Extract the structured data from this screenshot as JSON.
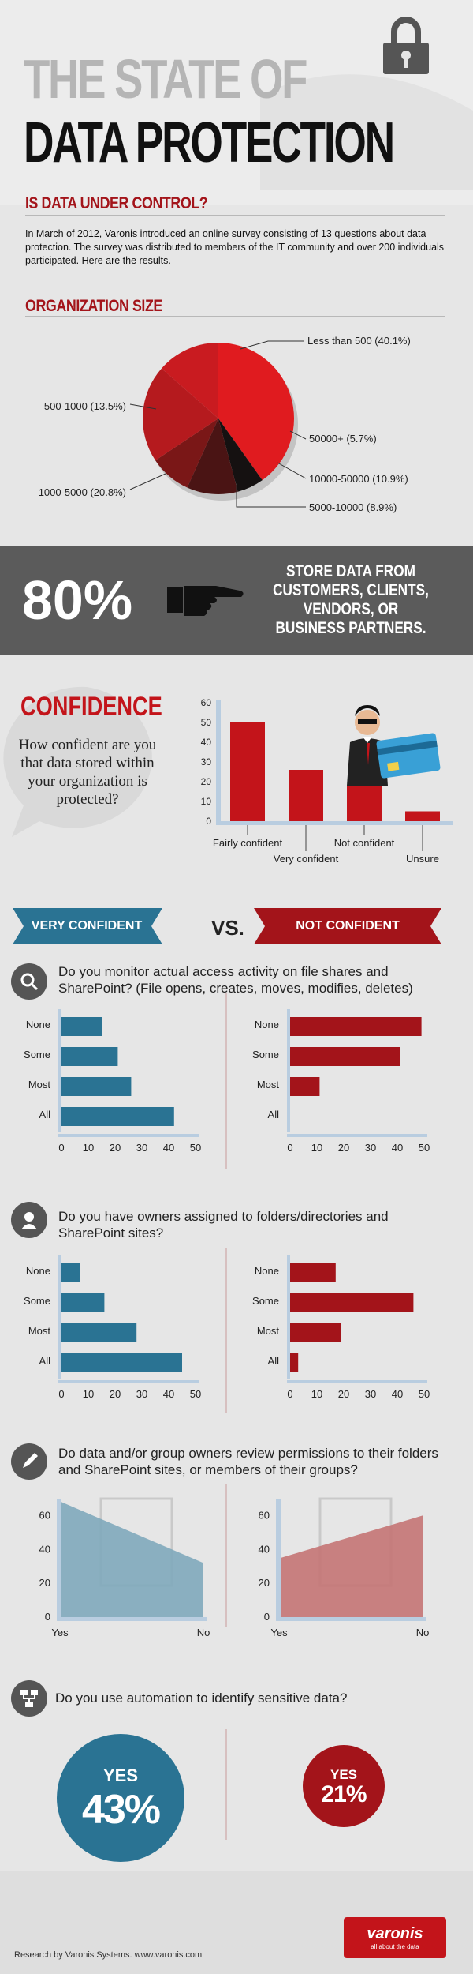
{
  "header": {
    "title_line1": "THE STATE OF",
    "title_line2": "DATA PROTECTION",
    "lock_icon": "padlock-icon"
  },
  "intro_section": {
    "heading": "IS DATA UNDER CONTROL?",
    "text": "In March of 2012, Varonis introduced an online survey consisting of 13 questions about data protection. The survey was distributed to members of the IT community and over 200 individuals participated.  Here are the results."
  },
  "org_size": {
    "heading": "ORGANIZATION SIZE"
  },
  "banner": {
    "percent": "80%",
    "text": "STORE DATA FROM CUSTOMERS, CLIENTS, VENDORS, OR BUSINESS PARTNERS.",
    "hand_icon": "pointing-hand-icon"
  },
  "confidence": {
    "heading": "CONFIDENCE",
    "question": "How confident are you that data stored within your organization is protected?"
  },
  "versus": {
    "left_label": "VERY CONFIDENT",
    "vs": "VS.",
    "right_label": "NOT CONFIDENT"
  },
  "questions": {
    "q1": "Do you monitor actual access activity on file shares and SharePoint? (File opens, creates, moves, modifies, deletes)",
    "q2": "Do you have owners assigned to folders/directories and SharePoint sites?",
    "q3": "Do data and/or group owners review permissions to their folders and SharePoint sites, or members of their groups?",
    "q4": "Do you use automation to identify sensitive data?"
  },
  "automation": {
    "left_yes": "YES",
    "left_pct": "43%",
    "right_yes": "YES",
    "right_pct": "21%"
  },
  "footer": {
    "text": "Research by Varonis Systems. www.varonis.com",
    "logo": "varonis",
    "tagline": "all about the data"
  },
  "colors": {
    "red": "#c3141a",
    "dark_red": "#a3141a",
    "blue": "#2a7393",
    "light_blue": "#7fa8bb",
    "light_red": "#c47474"
  },
  "chart_data": [
    {
      "id": "org-size-pie",
      "type": "pie",
      "labels": [
        "Less than 500 (40.1%)",
        "50000+ (5.7%)",
        "10000-50000 (10.9%)",
        "5000-10000 (8.9%)",
        "1000-5000 (20.8%)",
        "500-1000 (13.5%)"
      ],
      "values": [
        40.1,
        5.7,
        10.9,
        8.9,
        20.8,
        13.5
      ],
      "colors": [
        "#e01b1f",
        "#151111",
        "#4a1414",
        "#7a1717",
        "#b51a1e",
        "#c91b20"
      ]
    },
    {
      "id": "confidence-bar",
      "type": "bar",
      "categories": [
        "Fairly confident",
        "Very confident",
        "Not confident",
        "Unsure"
      ],
      "values": [
        50,
        26,
        18,
        5
      ],
      "ylim": [
        0,
        60
      ],
      "yticks": [
        0,
        10,
        20,
        30,
        40,
        50,
        60
      ]
    },
    {
      "id": "monitor-very",
      "type": "bar",
      "orientation": "horizontal",
      "categories": [
        "None",
        "Some",
        "Most",
        "All"
      ],
      "values": [
        15,
        21,
        26,
        42
      ],
      "xlim": [
        0,
        50
      ],
      "xticks": [
        0,
        10,
        20,
        30,
        40,
        50
      ]
    },
    {
      "id": "monitor-not",
      "type": "bar",
      "orientation": "horizontal",
      "categories": [
        "None",
        "Some",
        "Most",
        "All"
      ],
      "values": [
        49,
        41,
        11,
        0
      ],
      "xlim": [
        0,
        50
      ],
      "xticks": [
        0,
        10,
        20,
        30,
        40,
        50
      ]
    },
    {
      "id": "owners-very",
      "type": "bar",
      "orientation": "horizontal",
      "categories": [
        "None",
        "Some",
        "Most",
        "All"
      ],
      "values": [
        7,
        16,
        28,
        45
      ],
      "xlim": [
        0,
        50
      ],
      "xticks": [
        0,
        10,
        20,
        30,
        40,
        50
      ]
    },
    {
      "id": "owners-not",
      "type": "bar",
      "orientation": "horizontal",
      "categories": [
        "None",
        "Some",
        "Most",
        "All"
      ],
      "values": [
        17,
        46,
        19,
        3
      ],
      "xlim": [
        0,
        50
      ],
      "xticks": [
        0,
        10,
        20,
        30,
        40,
        50
      ]
    },
    {
      "id": "review-very",
      "type": "area",
      "categories": [
        "Yes",
        "No"
      ],
      "values": [
        68,
        32
      ],
      "ylim": [
        0,
        70
      ],
      "yticks": [
        0,
        20,
        40,
        60
      ]
    },
    {
      "id": "review-not",
      "type": "area",
      "categories": [
        "Yes",
        "No"
      ],
      "values": [
        35,
        60
      ],
      "ylim": [
        0,
        70
      ],
      "yticks": [
        0,
        20,
        40,
        60
      ]
    }
  ]
}
